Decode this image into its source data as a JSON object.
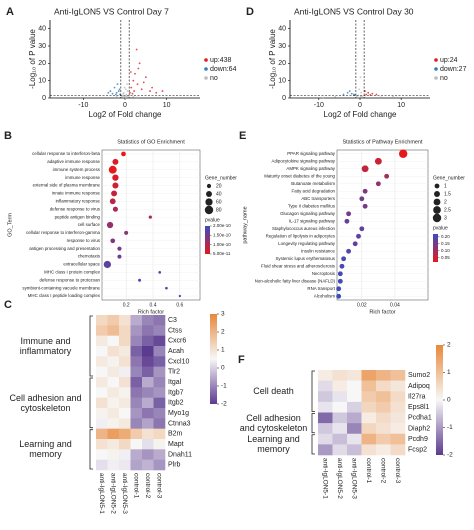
{
  "chart_data": [
    {
      "type": "volcano",
      "label": "A",
      "title": "Anti-IgLON5 VS Control  Day 7",
      "xlabel": "Log2 of Fold change",
      "ylabel": "-Log₁₀ of P value",
      "xlim": [
        -18,
        18
      ],
      "ylim": [
        0,
        45
      ],
      "xticks": [
        -10,
        0,
        10
      ],
      "yticks": [
        0,
        10,
        20,
        30,
        40
      ],
      "thresholds": {
        "x": [
          -1,
          1
        ],
        "y": 1.3
      },
      "series": [
        {
          "name": "up:438",
          "color": "#e41a1c",
          "x": [
            1.2,
            1.5,
            2,
            2.4,
            3,
            3.5,
            4,
            5,
            6,
            7.5,
            2.8,
            1.8,
            4.5,
            3.2,
            2.2,
            6.5,
            1.4,
            9
          ],
          "y": [
            3,
            6,
            10,
            14,
            8,
            20,
            5,
            12,
            4,
            3,
            28,
            2.5,
            9,
            17,
            4,
            6,
            15,
            4
          ]
        },
        {
          "name": "down:64",
          "color": "#377eb8",
          "x": [
            -1.2,
            -1.5,
            -2,
            -2.5,
            -3,
            -1.8,
            -4,
            -1.3,
            -2.2,
            -3.5
          ],
          "y": [
            2,
            4,
            3,
            6,
            2.5,
            8,
            3,
            5,
            2,
            4
          ]
        },
        {
          "name": "no",
          "color": "#bdbdbd",
          "x": [
            -0.5,
            -0.2,
            0.1,
            0.4,
            0.8,
            -0.8,
            0.3,
            -0.3,
            0.6,
            -0.6,
            0,
            0.2,
            -0.1,
            2,
            -2,
            3,
            0.5,
            -0.4
          ],
          "y": [
            0.5,
            0.8,
            0.3,
            1,
            0.6,
            0.9,
            2,
            3,
            4,
            1.5,
            1.1,
            5,
            6,
            0.8,
            1,
            0.4,
            8,
            2.5
          ]
        }
      ]
    },
    {
      "type": "dotplot",
      "label": "B",
      "title": "Statistics of GO Enrichment",
      "xlabel": "Rich factor",
      "ylabel": "GO_Term",
      "xlim": [
        0.02,
        0.75
      ],
      "xticks": [
        0.2,
        0.4,
        0.6
      ],
      "categories": [
        "cellular response to interferon-beta",
        "adaptive immune response",
        "immune system process",
        "immune response",
        "external side of plasma membrane",
        "innate immune response",
        "inflammatory response",
        "defense response to virus",
        "peptide antigen binding",
        "cell surface",
        "cellular response to interferon-gamma",
        "response to virus",
        "antigen processing and presentation",
        "chemotaxis",
        "extracellular space",
        "MHC class I protein complex",
        "defense response to protozoan",
        "symbiont-containing vacuole membrane",
        "MHC class I peptide loading complex"
      ],
      "values": [
        0.18,
        0.12,
        0.1,
        0.12,
        0.12,
        0.11,
        0.1,
        0.12,
        0.38,
        0.08,
        0.2,
        0.1,
        0.15,
        0.15,
        0.06,
        0.45,
        0.3,
        0.5,
        0.6
      ],
      "sizes": [
        25,
        40,
        70,
        45,
        42,
        40,
        38,
        30,
        12,
        45,
        18,
        25,
        20,
        18,
        60,
        8,
        10,
        8,
        6
      ],
      "pvalues": [
        5e-11,
        6e-11,
        5e-11,
        6e-11,
        7e-11,
        8e-11,
        9e-11,
        1e-10,
        1.1e-10,
        1.2e-10,
        1.3e-10,
        1.4e-10,
        1.5e-10,
        1.6e-10,
        1.7e-10,
        1.8e-10,
        1.9e-10,
        1.9e-10,
        2e-10
      ],
      "size_title": "Gene_number",
      "size_legend": [
        20,
        40,
        60,
        80
      ],
      "color_title": "pvalue",
      "colors": [
        "#e41a1c",
        "#3b4cc0"
      ],
      "clim": [
        5e-11,
        2e-10
      ],
      "cticks": [
        {
          "value": 2e-10,
          "label": "2.00e-10"
        },
        {
          "value": 1.5e-10,
          "label": "1.50e-10"
        },
        {
          "value": 1e-10,
          "label": "1.00e-10"
        },
        {
          "value": 5e-11,
          "label": "5.00e-11"
        }
      ]
    },
    {
      "type": "heatmap",
      "label": "C",
      "rows": [
        "C3",
        "Ctss",
        "Cxcr6",
        "Acah",
        "Cxcl10",
        "Tlr2",
        "Itgal",
        "Itgb7",
        "Itgb2",
        "Myo1g",
        "Ctnna3",
        "B2m",
        "Mapt",
        "Dnah11",
        "Plrb"
      ],
      "columns": [
        "anti-IgLON5-1",
        "anti-IgLON5-2",
        "anti-IgLON5-3",
        "control-1",
        "control-2",
        "control-3"
      ],
      "values": [
        [
          1.2,
          1.5,
          1.0,
          -0.5,
          -1.0,
          -1.2
        ],
        [
          1.5,
          1.8,
          1.2,
          -0.8,
          -1.2,
          -1.0
        ],
        [
          0.8,
          0.5,
          1.2,
          -1.0,
          -1.5,
          -1.8
        ],
        [
          0.5,
          1.0,
          0.8,
          -1.5,
          -2.0,
          -1.0
        ],
        [
          0.8,
          0.6,
          1.0,
          -1.2,
          -1.8,
          -1.5
        ],
        [
          0.5,
          0.8,
          0.4,
          -1.0,
          -1.5,
          -0.8
        ],
        [
          0.8,
          0.5,
          1.0,
          -1.5,
          -0.5,
          -1.0
        ],
        [
          0.5,
          0.8,
          0.6,
          -1.2,
          -1.0,
          -0.8
        ],
        [
          1.0,
          0.6,
          0.8,
          -1.0,
          -0.5,
          -1.5
        ],
        [
          0.6,
          0.8,
          0.5,
          -0.8,
          -1.2,
          -1.0
        ],
        [
          0.4,
          0.6,
          0.8,
          -1.0,
          -0.6,
          -1.2
        ],
        [
          2.0,
          2.5,
          2.2,
          1.5,
          1.0,
          1.2
        ],
        [
          1.0,
          0.8,
          1.2,
          0.5,
          0.2,
          0.6
        ],
        [
          0.5,
          0.6,
          0.4,
          -0.5,
          -0.8,
          -0.5
        ],
        [
          0.2,
          0.4,
          0.3,
          -0.6,
          -0.4,
          -0.8
        ]
      ],
      "groups": [
        {
          "name": "Immune and inflammatory",
          "genes": [
            "C3",
            "Tlr2"
          ]
        },
        {
          "name": "Cell adhesion and cytoskeleton",
          "genes": [
            "Itgal",
            "Ctnna3"
          ]
        },
        {
          "name": "Learning and memory",
          "genes": [
            "B2m",
            "Plrb"
          ]
        }
      ],
      "colors": [
        "#5b3a8f",
        "#f7f7f7",
        "#e8883a"
      ],
      "clim": [
        -2,
        3
      ],
      "cticks": [
        3,
        2,
        1,
        0,
        -1,
        -2
      ]
    },
    {
      "type": "volcano",
      "label": "D",
      "title": "Anti-IgLON5 VS Control  Day 30",
      "xlabel": "Log2 of Fold change",
      "ylabel": "-Log₁₀ of P value",
      "xlim": [
        -17,
        17
      ],
      "ylim": [
        0,
        45
      ],
      "xticks": [
        -10,
        0,
        10
      ],
      "yticks": [
        0,
        10,
        20,
        30,
        40
      ],
      "thresholds": {
        "x": [
          -1,
          1
        ],
        "y": 1.3
      },
      "series": [
        {
          "name": "up:24",
          "color": "#e41a1c",
          "x": [
            1.5,
            2,
            3,
            1.2,
            4,
            2.5
          ],
          "y": [
            2,
            3,
            2.5,
            4,
            2,
            1.8
          ]
        },
        {
          "name": "down:27",
          "color": "#377eb8",
          "x": [
            -1.5,
            -2,
            -3,
            -1.2,
            -4,
            -2.5
          ],
          "y": [
            2,
            2.5,
            3,
            1.8,
            2,
            4
          ]
        },
        {
          "name": "no",
          "color": "#bdbdbd",
          "x": [
            -0.5,
            0.2,
            0.6,
            -0.8,
            0.3,
            -0.2,
            5,
            -6,
            8,
            -9,
            0.1,
            -0.4
          ],
          "y": [
            0.4,
            0.8,
            1,
            0.6,
            3,
            5,
            0.5,
            0.7,
            1,
            0.3,
            12,
            1.5
          ]
        }
      ]
    },
    {
      "type": "dotplot",
      "label": "E",
      "title": "Statistics of Pathway Enrichment",
      "xlabel": "Rich factor",
      "ylabel": "pathway_name",
      "xlim": [
        0.005,
        0.06
      ],
      "xticks": [
        0.02,
        0.04
      ],
      "categories": [
        "PPAR signaling pathway",
        "Adipocytokine signaling pathway",
        "AMPK signaling pathway",
        "Maturity onset diabetes of the young",
        "Butanoate metabolism",
        "Fatty acid degradation",
        "ABC transporters",
        "Type II diabetes mellitus",
        "Glucagon signaling pathway",
        "IL-17 signaling pathway",
        "Staphylococcus aureus infection",
        "Regulation of lipolysis in adipocytes",
        "Longevity regulating pathway",
        "Insulin resistance",
        "Systemic lupus erythematosus",
        "Fluid shear stress and atherosclerosis",
        "Necroptosis",
        "Non-alcoholic fatty liver disease (NAFLD)",
        "RNA transport",
        "Alcoholism"
      ],
      "values": [
        0.045,
        0.03,
        0.022,
        0.035,
        0.03,
        0.022,
        0.02,
        0.022,
        0.012,
        0.011,
        0.02,
        0.018,
        0.016,
        0.012,
        0.009,
        0.008,
        0.007,
        0.007,
        0.006,
        0.006
      ],
      "sizes": [
        3,
        2,
        2,
        1,
        1,
        1,
        1,
        1,
        1,
        1,
        1,
        1,
        1,
        1,
        1,
        1,
        1,
        1,
        1,
        1
      ],
      "pvalues": [
        0.02,
        0.05,
        0.06,
        0.1,
        0.12,
        0.14,
        0.15,
        0.15,
        0.16,
        0.17,
        0.17,
        0.18,
        0.18,
        0.19,
        0.2,
        0.2,
        0.21,
        0.21,
        0.22,
        0.22
      ],
      "size_title": "Gene_number",
      "size_legend": [
        1.0,
        1.5,
        2.0,
        2.5,
        3.0
      ],
      "color_title": "pvalue",
      "colors": [
        "#e41a1c",
        "#3b4cc0"
      ],
      "clim": [
        0.02,
        0.22
      ],
      "cticks": [
        {
          "value": 0.2,
          "label": "0.20"
        },
        {
          "value": 0.15,
          "label": "0.15"
        },
        {
          "value": 0.1,
          "label": "0.10"
        },
        {
          "value": 0.05,
          "label": "0.05"
        }
      ]
    },
    {
      "type": "heatmap",
      "label": "F",
      "rows": [
        "Sumo2",
        "Adipoq",
        "Il27ra",
        "Eps8l1",
        "Pcdha1",
        "Diaph2",
        "Pcdh9",
        "Fcsp2"
      ],
      "columns": [
        "anti-IgLON5-1",
        "anti-IgLON5-2",
        "anti-IgLON5-3",
        "control-1",
        "control-2",
        "control-3"
      ],
      "values": [
        [
          0.2,
          0.4,
          0.3,
          1.5,
          1.2,
          1.0
        ],
        [
          -0.3,
          0.2,
          0.0,
          1.0,
          0.5,
          0.3
        ],
        [
          -0.5,
          -0.2,
          0.0,
          0.8,
          1.0,
          0.5
        ],
        [
          -0.2,
          0.0,
          -0.4,
          0.6,
          0.8,
          0.4
        ],
        [
          -1.5,
          -0.5,
          -0.8,
          0.2,
          0.5,
          0.3
        ],
        [
          -0.5,
          -0.2,
          -1.2,
          0.6,
          0.4,
          0.2
        ],
        [
          -0.3,
          -0.6,
          -0.2,
          1.2,
          0.8,
          1.0
        ],
        [
          -1.0,
          -0.3,
          -0.6,
          0.4,
          0.2,
          0.5
        ]
      ],
      "groups": [
        {
          "name": "Cell death",
          "genes": [
            "Sumo2",
            "Eps8l1"
          ]
        },
        {
          "name": "Cell adhesion and cytoskeleton",
          "genes": [
            "Pcdha1",
            "Diaph2"
          ]
        },
        {
          "name": "Learning and memory",
          "genes": [
            "Pcdh9",
            "Fcsp2"
          ]
        }
      ],
      "colors": [
        "#5b3a8f",
        "#f7f7f7",
        "#e8883a"
      ],
      "clim": [
        -2,
        2
      ],
      "cticks": [
        2,
        1,
        0,
        -1,
        -2
      ]
    }
  ]
}
